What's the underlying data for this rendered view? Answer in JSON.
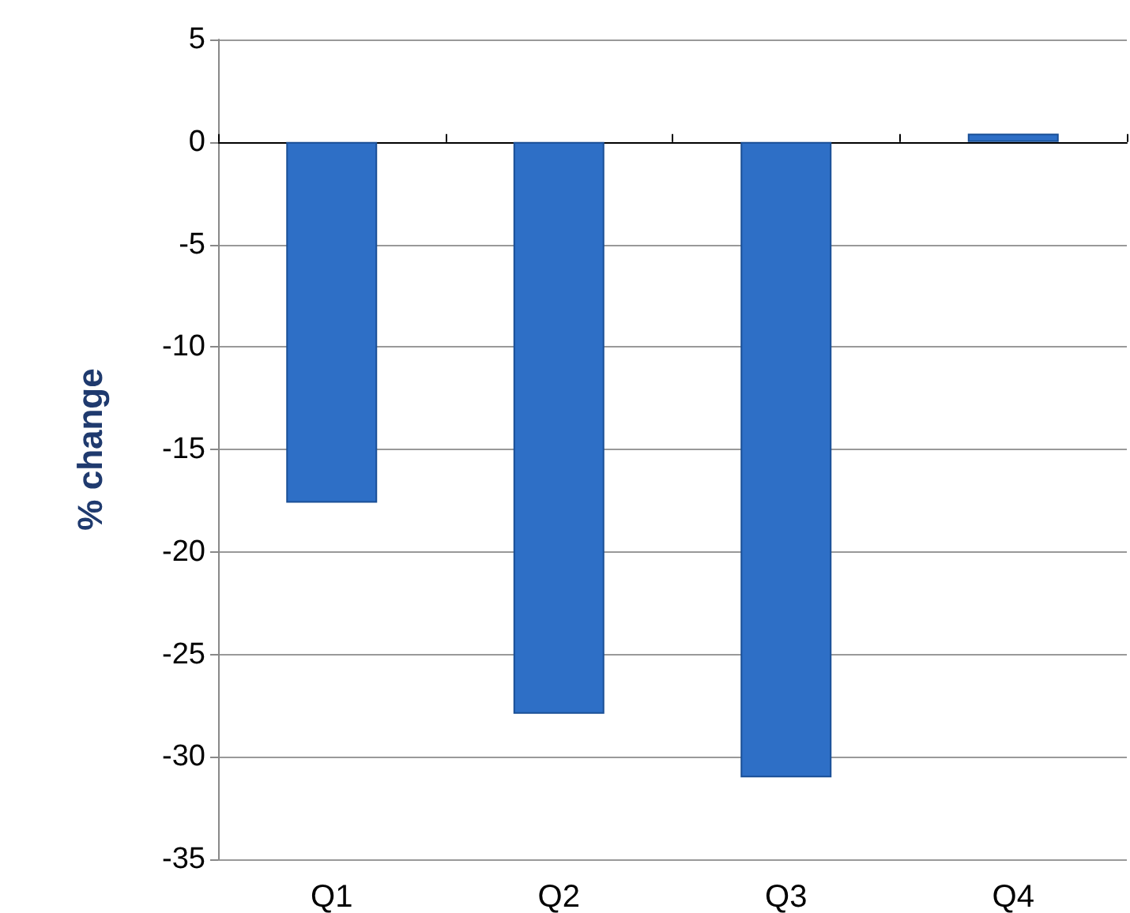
{
  "chart_data": {
    "type": "bar",
    "ylabel": "% change",
    "categories": [
      "Q1",
      "Q2",
      "Q3",
      "Q4"
    ],
    "values": [
      -17.6,
      -27.9,
      -31.0,
      0.4
    ],
    "color": "#2e6fc6",
    "ylim": [
      -35,
      5
    ],
    "yticks": [
      -35,
      -30,
      -25,
      -20,
      -15,
      -10,
      -5,
      0,
      5
    ],
    "grid": "y"
  }
}
